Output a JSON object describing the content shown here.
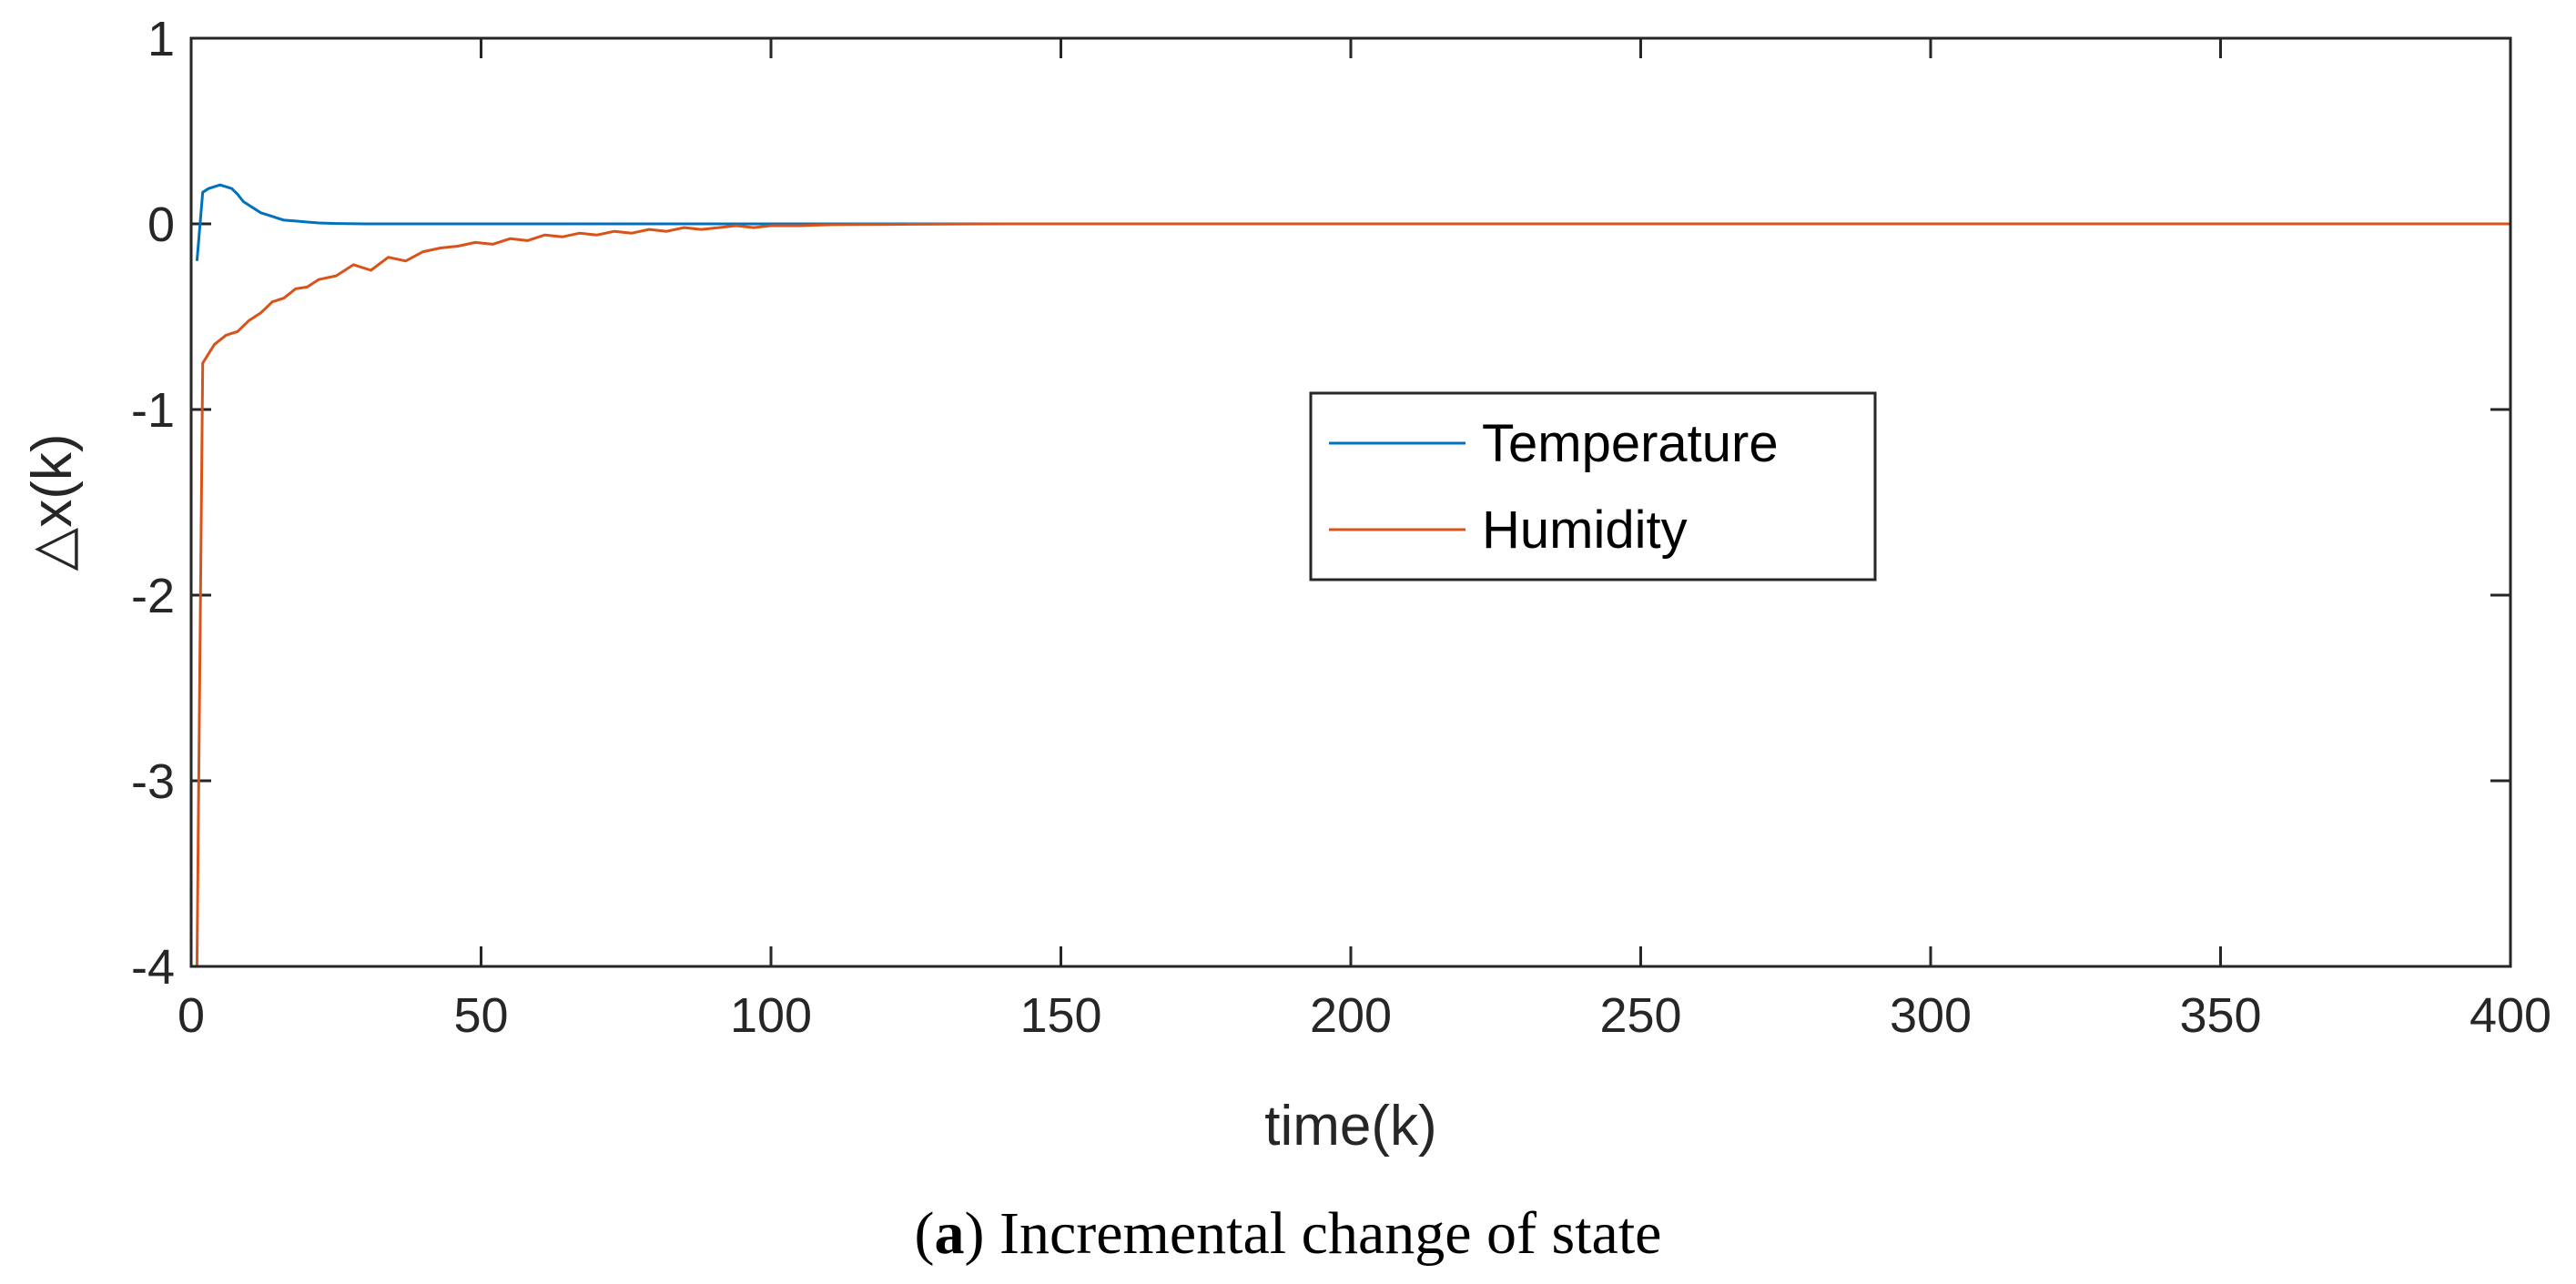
{
  "chart_data": {
    "type": "line",
    "title": "",
    "xlabel": "time(k)",
    "ylabel": "△x(k)",
    "xlim": [
      0,
      400
    ],
    "ylim": [
      -4,
      1
    ],
    "xticks": [
      0,
      50,
      100,
      150,
      200,
      250,
      300,
      350,
      400
    ],
    "yticks": [
      -4,
      -3,
      -2,
      -1,
      0,
      1
    ],
    "legend_position": "center-right",
    "grid": false,
    "series": [
      {
        "name": "Temperature",
        "color": "#0072BD",
        "x": [
          1,
          2,
          3,
          4,
          5,
          6,
          7,
          8,
          9,
          10,
          11,
          12,
          13,
          14,
          15,
          16,
          18,
          20,
          22,
          25,
          30,
          40,
          60,
          100,
          150,
          200,
          300,
          400
        ],
        "y": [
          -0.2,
          0.17,
          0.19,
          0.2,
          0.21,
          0.2,
          0.19,
          0.16,
          0.12,
          0.1,
          0.08,
          0.06,
          0.05,
          0.04,
          0.03,
          0.02,
          0.015,
          0.01,
          0.005,
          0.002,
          0.0,
          0.0,
          0.0,
          0.0,
          0.0,
          0.0,
          0.0,
          0.0
        ]
      },
      {
        "name": "Humidity",
        "color": "#D95319",
        "x": [
          1,
          2,
          3,
          4,
          6,
          8,
          10,
          12,
          14,
          16,
          18,
          20,
          22,
          25,
          28,
          31,
          34,
          37,
          40,
          43,
          46,
          49,
          52,
          55,
          58,
          61,
          64,
          67,
          70,
          73,
          76,
          79,
          82,
          85,
          88,
          91,
          94,
          97,
          100,
          105,
          110,
          115,
          120,
          125,
          130,
          140,
          150,
          200,
          300,
          400
        ],
        "y": [
          -4.0,
          -0.75,
          -0.7,
          -0.65,
          -0.6,
          -0.58,
          -0.52,
          -0.48,
          -0.42,
          -0.4,
          -0.35,
          -0.34,
          -0.3,
          -0.28,
          -0.22,
          -0.25,
          -0.18,
          -0.2,
          -0.15,
          -0.13,
          -0.12,
          -0.1,
          -0.11,
          -0.08,
          -0.09,
          -0.06,
          -0.07,
          -0.05,
          -0.06,
          -0.04,
          -0.05,
          -0.03,
          -0.04,
          -0.02,
          -0.03,
          -0.02,
          -0.01,
          -0.02,
          -0.01,
          -0.01,
          -0.005,
          -0.004,
          -0.003,
          -0.002,
          -0.001,
          0.0,
          0.0,
          0.0,
          0.0,
          0.0
        ]
      }
    ]
  },
  "caption": {
    "label": "a",
    "text": "Incremental change of state"
  }
}
